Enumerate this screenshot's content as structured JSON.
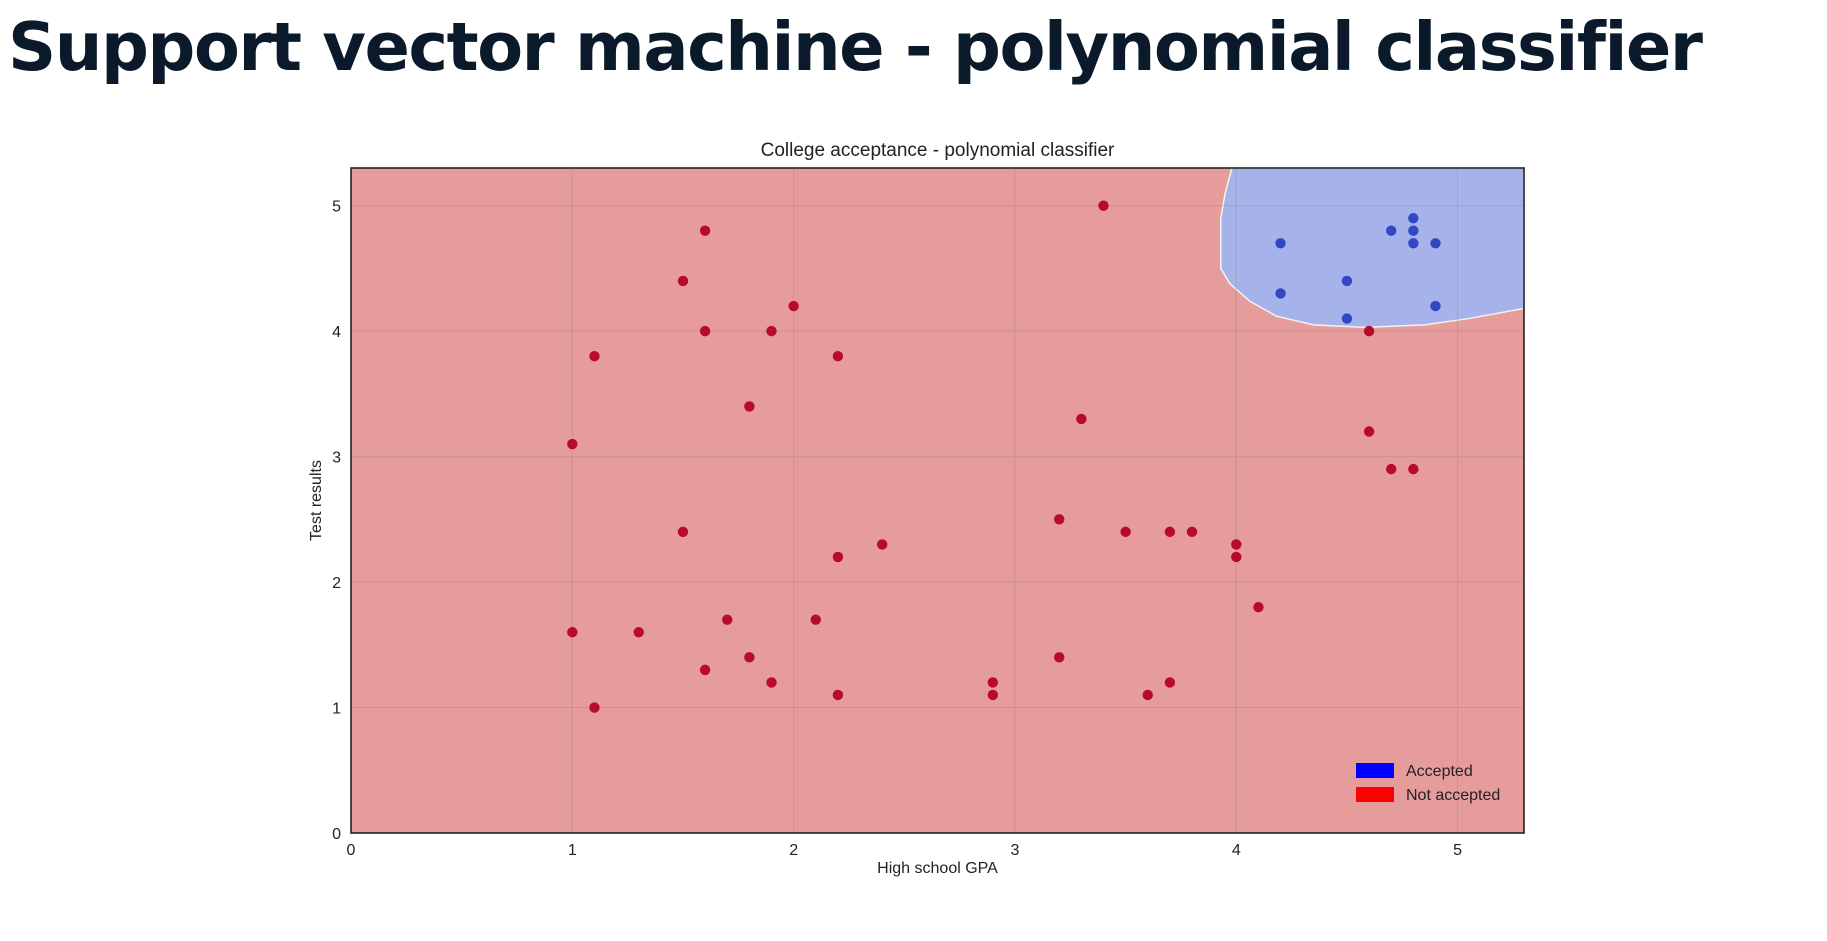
{
  "page": {
    "title": "Support vector machine - polynomial classifier"
  },
  "chart_data": {
    "type": "scatter",
    "title": "College acceptance - polynomial classifier",
    "xlabel": "High school GPA",
    "ylabel": "Test results",
    "xlim": [
      0,
      5.3
    ],
    "ylim": [
      0,
      5.3
    ],
    "xticks": [
      0,
      1,
      2,
      3,
      4,
      5
    ],
    "yticks": [
      0,
      1,
      2,
      3,
      4,
      5
    ],
    "grid": true,
    "legend_position": "bottom-right",
    "background_region": {
      "label": "Not accepted",
      "color": "#e59c9a"
    },
    "decision_boundary": {
      "label": "Accepted",
      "fill_color": "#a6b3ea",
      "points": [
        [
          3.98,
          5.3
        ],
        [
          3.95,
          5.1
        ],
        [
          3.93,
          4.9
        ],
        [
          3.93,
          4.7
        ],
        [
          3.93,
          4.5
        ],
        [
          3.97,
          4.38
        ],
        [
          4.06,
          4.24
        ],
        [
          4.18,
          4.12
        ],
        [
          4.35,
          4.05
        ],
        [
          4.58,
          4.03
        ],
        [
          4.85,
          4.05
        ],
        [
          5.05,
          4.1
        ],
        [
          5.3,
          4.18
        ],
        [
          5.3,
          5.3
        ]
      ]
    },
    "legend": [
      {
        "name": "Accepted",
        "color": "#0000ff"
      },
      {
        "name": "Not accepted",
        "color": "#ff0000"
      }
    ],
    "series": [
      {
        "name": "Accepted",
        "color": "#3347c4",
        "points": [
          [
            4.2,
            4.7
          ],
          [
            4.2,
            4.3
          ],
          [
            4.5,
            4.4
          ],
          [
            4.5,
            4.1
          ],
          [
            4.7,
            4.8
          ],
          [
            4.8,
            4.9
          ],
          [
            4.8,
            4.8
          ],
          [
            4.8,
            4.7
          ],
          [
            4.9,
            4.7
          ],
          [
            4.9,
            4.2
          ]
        ]
      },
      {
        "name": "Not accepted",
        "color": "#b80a2a",
        "points": [
          [
            1.0,
            3.1
          ],
          [
            1.0,
            1.6
          ],
          [
            1.1,
            3.8
          ],
          [
            1.1,
            1.0
          ],
          [
            1.3,
            1.6
          ],
          [
            1.5,
            4.4
          ],
          [
            1.5,
            2.4
          ],
          [
            1.6,
            4.8
          ],
          [
            1.6,
            4.0
          ],
          [
            1.6,
            1.3
          ],
          [
            1.7,
            1.7
          ],
          [
            1.8,
            3.4
          ],
          [
            1.8,
            1.4
          ],
          [
            1.9,
            4.0
          ],
          [
            1.9,
            1.2
          ],
          [
            2.0,
            4.2
          ],
          [
            2.1,
            1.7
          ],
          [
            2.2,
            3.8
          ],
          [
            2.2,
            2.2
          ],
          [
            2.2,
            1.1
          ],
          [
            2.4,
            2.3
          ],
          [
            2.9,
            1.2
          ],
          [
            2.9,
            1.1
          ],
          [
            3.2,
            2.5
          ],
          [
            3.2,
            1.4
          ],
          [
            3.3,
            3.3
          ],
          [
            3.4,
            5.0
          ],
          [
            3.5,
            2.4
          ],
          [
            3.6,
            1.1
          ],
          [
            3.7,
            2.4
          ],
          [
            3.7,
            1.2
          ],
          [
            3.8,
            2.4
          ],
          [
            4.0,
            2.3
          ],
          [
            4.0,
            2.2
          ],
          [
            4.1,
            1.8
          ],
          [
            4.6,
            4.0
          ],
          [
            4.6,
            3.2
          ],
          [
            4.7,
            2.9
          ],
          [
            4.8,
            2.9
          ]
        ]
      }
    ]
  }
}
